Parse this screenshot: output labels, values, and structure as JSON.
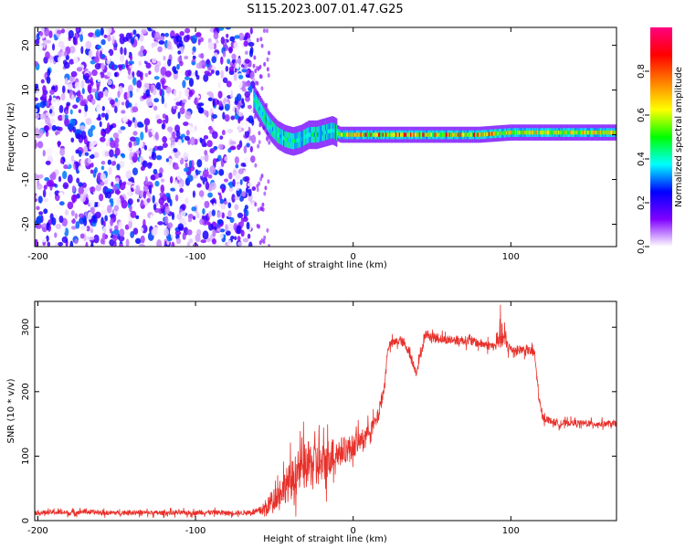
{
  "title": "S115.2023.007.01.47.G25",
  "chart_data": [
    {
      "type": "heatmap",
      "title": "",
      "xlabel": "Height of straight line (km)",
      "ylabel": "Frequency (Hz)",
      "xlim": [
        -202,
        167
      ],
      "ylim": [
        -25,
        24
      ],
      "xticks": [
        -200,
        -100,
        0,
        100
      ],
      "yticks": [
        -20,
        -10,
        0,
        10,
        20
      ],
      "grid": false,
      "colorbar": {
        "label": "Normalized spectral amplitude",
        "range": [
          0.0,
          1.0
        ],
        "ticks": [
          0.0,
          0.2,
          0.4,
          0.6,
          0.8
        ],
        "colors": [
          "#ffffff",
          "#8000ff",
          "#0000ff",
          "#00ffff",
          "#00ff00",
          "#ffff00",
          "#ff8000",
          "#ff0000",
          "#ff0080"
        ]
      },
      "description_regions": {
        "noise_region_x": [
          -202,
          -63
        ],
        "signal_start_x": -63
      },
      "ridge": {
        "x": [
          -63,
          -58,
          -53,
          -48,
          -43,
          -38,
          -33,
          -28,
          -23,
          -18,
          -13,
          -8,
          -3,
          0,
          20,
          40,
          60,
          80,
          100,
          120,
          140,
          167
        ],
        "y": [
          8,
          5,
          2,
          0,
          -1,
          -1.5,
          -1,
          0,
          0,
          0.5,
          1,
          0,
          0,
          0,
          0,
          0,
          0,
          0,
          0.5,
          0.5,
          0.5,
          0.5
        ]
      }
    },
    {
      "type": "line",
      "title": "",
      "xlabel": "Height of straight line (km)",
      "ylabel": "SNR (10 * v/v)",
      "xlim": [
        -202,
        167
      ],
      "ylim": [
        0,
        340
      ],
      "xticks": [
        -200,
        -100,
        0,
        100
      ],
      "yticks": [
        0,
        100,
        200,
        300
      ],
      "grid": false,
      "series": [
        {
          "color": "#e8302a",
          "x": [
            -202,
            -190,
            -180,
            -170,
            -160,
            -150,
            -140,
            -130,
            -120,
            -110,
            -100,
            -90,
            -80,
            -70,
            -60,
            -55,
            -50,
            -45,
            -40,
            -35,
            -30,
            -25,
            -20,
            -15,
            -10,
            -5,
            0,
            5,
            10,
            15,
            20,
            22,
            25,
            30,
            35,
            40,
            43,
            46,
            50,
            60,
            70,
            80,
            90,
            93,
            100,
            110,
            115,
            118,
            120,
            130,
            140,
            150,
            160,
            167
          ],
          "y": [
            12,
            13,
            12,
            14,
            12,
            12,
            13,
            12,
            12,
            12,
            12,
            13,
            12,
            12,
            14,
            20,
            35,
            50,
            60,
            75,
            85,
            90,
            85,
            100,
            105,
            110,
            115,
            125,
            140,
            155,
            210,
            270,
            275,
            280,
            265,
            230,
            260,
            290,
            285,
            280,
            280,
            275,
            270,
            290,
            265,
            265,
            260,
            185,
            160,
            150,
            152,
            150,
            150,
            150
          ],
          "noise_amplitude": [
            6,
            6,
            6,
            6,
            6,
            6,
            6,
            6,
            6,
            6,
            6,
            6,
            6,
            6,
            10,
            20,
            30,
            40,
            50,
            55,
            60,
            60,
            55,
            50,
            40,
            35,
            30,
            25,
            20,
            20,
            15,
            12,
            12,
            12,
            12,
            12,
            12,
            12,
            12,
            12,
            12,
            12,
            12,
            40,
            12,
            12,
            12,
            15,
            10,
            8,
            8,
            8,
            8,
            8
          ]
        }
      ]
    }
  ]
}
